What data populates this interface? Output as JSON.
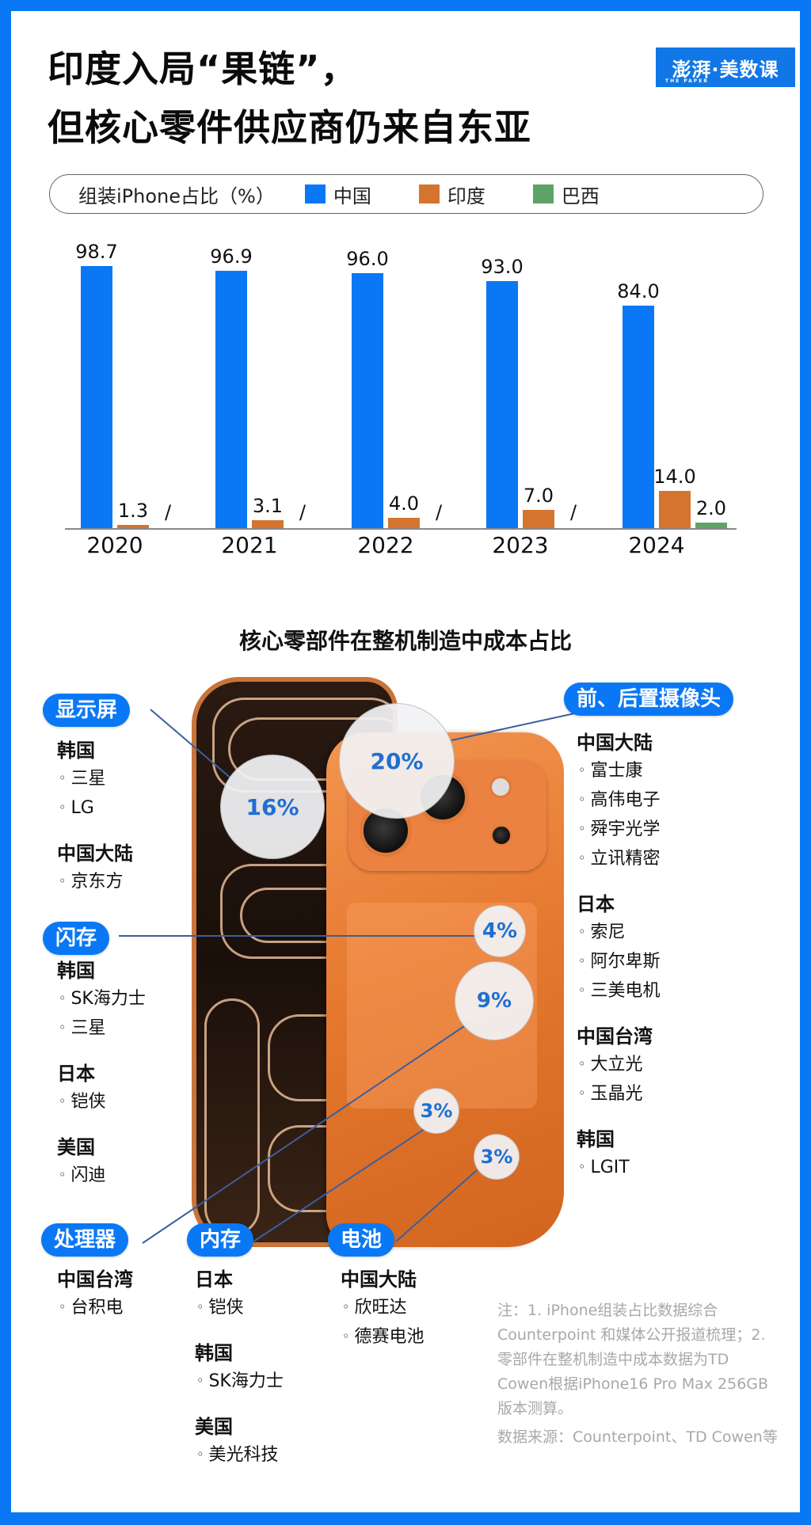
{
  "header": {
    "title_line1": "印度入局“果链”，",
    "title_line2": "但核心零件供应商仍来自东亚",
    "logo": "澎湃·美数课",
    "logo_sub": "THE PAPER"
  },
  "legend": {
    "label": "组装iPhone占比（%）",
    "items": [
      {
        "name": "中国",
        "color": "#0a78f5"
      },
      {
        "name": "印度",
        "color": "#d4742f"
      },
      {
        "name": "巴西",
        "color": "#5ea366"
      }
    ]
  },
  "chart_data": {
    "type": "bar",
    "title": "组装iPhone占比（%）",
    "categories": [
      "2020",
      "2021",
      "2022",
      "2023",
      "2024"
    ],
    "series": [
      {
        "name": "中国",
        "color": "#0a78f5",
        "values": [
          98.7,
          96.9,
          96.0,
          93.0,
          84.0
        ],
        "labels": [
          "98.7",
          "96.9",
          "96.0",
          "93.0",
          "84.0"
        ]
      },
      {
        "name": "印度",
        "color": "#d4742f",
        "values": [
          1.3,
          3.1,
          4.0,
          7.0,
          14.0
        ],
        "labels": [
          "1.3",
          "3.1",
          "4.0",
          "7.0",
          "14.0"
        ]
      },
      {
        "name": "巴西",
        "color": "#5ea366",
        "values": [
          null,
          null,
          null,
          null,
          2.0
        ],
        "labels": [
          "/",
          "/",
          "/",
          "/",
          "2.0"
        ]
      }
    ],
    "xlabel": "",
    "ylabel": "",
    "ylim": [
      0,
      100
    ],
    "grid": false,
    "legend_position": "top"
  },
  "components": {
    "title": "核心零部件在整机制造中成本占比",
    "display": {
      "label": "显示屏",
      "share": "16%",
      "suppliers": [
        {
          "region": "韩国",
          "companies": [
            "三星",
            "LG"
          ]
        },
        {
          "region": "中国大陆",
          "companies": [
            "京东方"
          ]
        }
      ]
    },
    "camera": {
      "label": "前、后置摄像头",
      "share": "20%",
      "suppliers": [
        {
          "region": "中国大陆",
          "companies": [
            "富士康",
            "高伟电子",
            "舜宇光学",
            "立讯精密"
          ]
        },
        {
          "region": "日本",
          "companies": [
            "索尼",
            "阿尔卑斯",
            "三美电机"
          ]
        },
        {
          "region": "中国台湾",
          "companies": [
            "大立光",
            "玉晶光"
          ]
        },
        {
          "region": "韩国",
          "companies": [
            "LGIT"
          ]
        }
      ]
    },
    "flash": {
      "label": "闪存",
      "share": "4%",
      "suppliers": [
        {
          "region": "韩国",
          "companies": [
            "SK海力士",
            "三星"
          ]
        },
        {
          "region": "日本",
          "companies": [
            "铠侠"
          ]
        },
        {
          "region": "美国",
          "companies": [
            "闪迪"
          ]
        }
      ]
    },
    "processor": {
      "label": "处理器",
      "share": "9%",
      "suppliers": [
        {
          "region": "中国台湾",
          "companies": [
            "台积电"
          ]
        }
      ]
    },
    "memory": {
      "label": "内存",
      "share": "3%",
      "suppliers": [
        {
          "region": "日本",
          "companies": [
            "铠侠"
          ]
        },
        {
          "region": "韩国",
          "companies": [
            "SK海力士"
          ]
        },
        {
          "region": "美国",
          "companies": [
            "美光科技"
          ]
        }
      ]
    },
    "battery": {
      "label": "电池",
      "share": "3%",
      "suppliers": [
        {
          "region": "中国大陆",
          "companies": [
            "欣旺达",
            "德赛电池"
          ]
        }
      ]
    }
  },
  "footer": {
    "note": "注：1. iPhone组装占比数据综合Counterpoint 和媒体公开报道梳理；2. 零部件在整机制造中成本数据为TD Cowen根据iPhone16 Pro Max 256GB版本测算。",
    "source": "数据来源：Counterpoint、TD Cowen等"
  }
}
